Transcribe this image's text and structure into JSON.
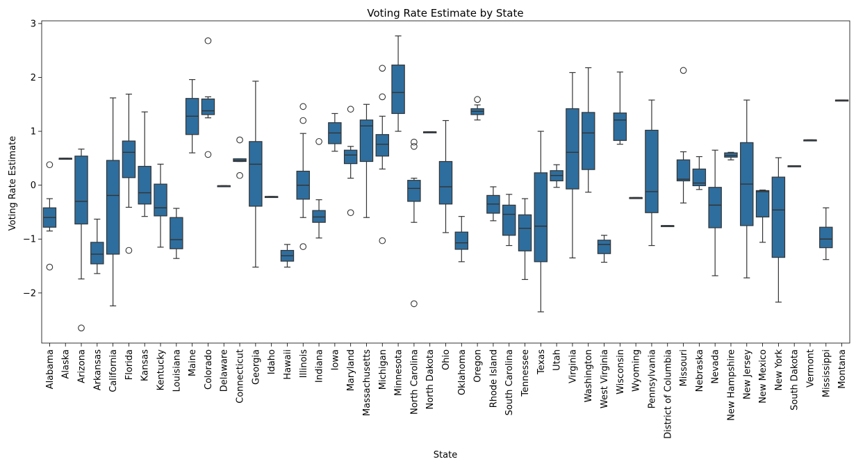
{
  "chart_data": {
    "type": "box",
    "title": "Voting Rate Estimate by State",
    "xlabel": "State",
    "ylabel": "Voting Rate Estimate",
    "ylim": [
      -2.93,
      3.05
    ],
    "yticks": [
      -2,
      -1,
      0,
      1,
      2,
      3
    ],
    "ytick_labels": [
      "−2",
      "−1",
      "0",
      "1",
      "2",
      "3"
    ],
    "grid": false,
    "box_color": "#2e6e9e",
    "line_color": "#333333",
    "categories": [
      "Alabama",
      "Alaska",
      "Arizona",
      "Arkansas",
      "California",
      "Florida",
      "Kansas",
      "Kentucky",
      "Louisiana",
      "Maine",
      "Colorado",
      "Delaware",
      "Connecticut",
      "Georgia",
      "Idaho",
      "Hawaii",
      "Illinois",
      "Indiana",
      "Iowa",
      "Maryland",
      "Massachusetts",
      "Michigan",
      "Minnesota",
      "North Carolina",
      "North Dakota",
      "Ohio",
      "Oklahoma",
      "Oregon",
      "Rhode Island",
      "South Carolina",
      "Tennessee",
      "Texas",
      "Utah",
      "Virginia",
      "Washington",
      "West Virginia",
      "Wisconsin",
      "Wyoming",
      "Pennsylvania",
      "District of Columbia",
      "Missouri",
      "Nebraska",
      "Nevada",
      "New Hampshire",
      "New Jersey",
      "New Mexico",
      "New York",
      "South Dakota",
      "Vermont",
      "Mississippi",
      "Montana"
    ],
    "boxes": [
      {
        "q1": -0.78,
        "median": -0.6,
        "q3": -0.42,
        "whisker_low": -0.85,
        "whisker_high": -0.25,
        "outliers": [
          0.38,
          -1.52
        ]
      },
      {
        "q1": 0.5,
        "median": 0.5,
        "q3": 0.5,
        "whisker_low": 0.5,
        "whisker_high": 0.5,
        "outliers": []
      },
      {
        "q1": -0.72,
        "median": -0.3,
        "q3": 0.54,
        "whisker_low": -1.74,
        "whisker_high": 0.67,
        "outliers": [
          -2.65
        ]
      },
      {
        "q1": -1.46,
        "median": -1.28,
        "q3": -1.06,
        "whisker_low": -1.64,
        "whisker_high": -0.63,
        "outliers": []
      },
      {
        "q1": -1.28,
        "median": -0.19,
        "q3": 0.46,
        "whisker_low": -2.24,
        "whisker_high": 1.62,
        "outliers": []
      },
      {
        "q1": 0.14,
        "median": 0.61,
        "q3": 0.82,
        "whisker_low": -0.41,
        "whisker_high": 1.69,
        "outliers": [
          -1.21
        ]
      },
      {
        "q1": -0.35,
        "median": -0.14,
        "q3": 0.35,
        "whisker_low": -0.58,
        "whisker_high": 1.36,
        "outliers": []
      },
      {
        "q1": -0.57,
        "median": -0.42,
        "q3": 0.02,
        "whisker_low": -1.15,
        "whisker_high": 0.39,
        "outliers": []
      },
      {
        "q1": -1.18,
        "median": -1.01,
        "q3": -0.6,
        "whisker_low": -1.36,
        "whisker_high": -0.43,
        "outliers": []
      },
      {
        "q1": 0.94,
        "median": 1.28,
        "q3": 1.61,
        "whisker_low": 0.6,
        "whisker_high": 1.96,
        "outliers": []
      },
      {
        "q1": 1.31,
        "median": 1.38,
        "q3": 1.6,
        "whisker_low": 1.25,
        "whisker_high": 1.64,
        "outliers": [
          2.68,
          0.57
        ]
      },
      {
        "q1": -0.01,
        "median": -0.01,
        "q3": -0.01,
        "whisker_low": -0.01,
        "whisker_high": -0.01,
        "outliers": []
      },
      {
        "q1": 0.44,
        "median": 0.46,
        "q3": 0.49,
        "whisker_low": 0.44,
        "whisker_high": 0.49,
        "outliers": [
          0.84,
          0.18
        ]
      },
      {
        "q1": -0.39,
        "median": 0.39,
        "q3": 0.81,
        "whisker_low": -1.52,
        "whisker_high": 1.93,
        "outliers": []
      },
      {
        "q1": -0.21,
        "median": -0.21,
        "q3": -0.21,
        "whisker_low": -0.21,
        "whisker_high": -0.21,
        "outliers": []
      },
      {
        "q1": -1.41,
        "median": -1.31,
        "q3": -1.21,
        "whisker_low": -1.52,
        "whisker_high": -1.1,
        "outliers": []
      },
      {
        "q1": -0.26,
        "median": 0.0,
        "q3": 0.26,
        "whisker_low": -0.6,
        "whisker_high": 0.96,
        "outliers": [
          1.46,
          1.2,
          -1.14
        ]
      },
      {
        "q1": -0.69,
        "median": -0.59,
        "q3": -0.47,
        "whisker_low": -0.98,
        "whisker_high": -0.27,
        "outliers": [
          0.81
        ]
      },
      {
        "q1": 0.77,
        "median": 0.97,
        "q3": 1.16,
        "whisker_low": 0.63,
        "whisker_high": 1.33,
        "outliers": []
      },
      {
        "q1": 0.4,
        "median": 0.56,
        "q3": 0.65,
        "whisker_low": 0.13,
        "whisker_high": 0.72,
        "outliers": [
          1.41,
          -0.51
        ]
      },
      {
        "q1": 0.44,
        "median": 1.1,
        "q3": 1.21,
        "whisker_low": -0.6,
        "whisker_high": 1.5,
        "outliers": []
      },
      {
        "q1": 0.54,
        "median": 0.76,
        "q3": 0.94,
        "whisker_low": 0.3,
        "whisker_high": 1.28,
        "outliers": [
          2.17,
          1.64,
          -1.03
        ]
      },
      {
        "q1": 1.33,
        "median": 1.72,
        "q3": 2.23,
        "whisker_low": 1.0,
        "whisker_high": 2.77,
        "outliers": []
      },
      {
        "q1": -0.3,
        "median": -0.06,
        "q3": 0.09,
        "whisker_low": -0.69,
        "whisker_high": 0.13,
        "outliers": [
          0.8,
          0.72,
          -2.2
        ]
      },
      {
        "q1": 0.99,
        "median": 0.99,
        "q3": 0.99,
        "whisker_low": 0.99,
        "whisker_high": 0.99,
        "outliers": []
      },
      {
        "q1": -0.35,
        "median": -0.03,
        "q3": 0.44,
        "whisker_low": -0.88,
        "whisker_high": 1.2,
        "outliers": []
      },
      {
        "q1": -1.19,
        "median": -1.07,
        "q3": -0.87,
        "whisker_low": -1.42,
        "whisker_high": -0.58,
        "outliers": []
      },
      {
        "q1": 1.31,
        "median": 1.37,
        "q3": 1.42,
        "whisker_low": 1.21,
        "whisker_high": 1.49,
        "outliers": [
          1.59
        ]
      },
      {
        "q1": -0.52,
        "median": -0.35,
        "q3": -0.19,
        "whisker_low": -0.66,
        "whisker_high": -0.03,
        "outliers": []
      },
      {
        "q1": -0.93,
        "median": -0.54,
        "q3": -0.37,
        "whisker_low": -1.12,
        "whisker_high": -0.17,
        "outliers": []
      },
      {
        "q1": -1.22,
        "median": -0.8,
        "q3": -0.55,
        "whisker_low": -1.75,
        "whisker_high": -0.25,
        "outliers": []
      },
      {
        "q1": -1.42,
        "median": -0.76,
        "q3": 0.23,
        "whisker_low": -2.35,
        "whisker_high": 1.0,
        "outliers": []
      },
      {
        "q1": 0.08,
        "median": 0.18,
        "q3": 0.27,
        "whisker_low": -0.04,
        "whisker_high": 0.38,
        "outliers": []
      },
      {
        "q1": -0.07,
        "median": 0.61,
        "q3": 1.42,
        "whisker_low": -1.35,
        "whisker_high": 2.09,
        "outliers": []
      },
      {
        "q1": 0.29,
        "median": 0.97,
        "q3": 1.35,
        "whisker_low": -0.13,
        "whisker_high": 2.18,
        "outliers": []
      },
      {
        "q1": -1.27,
        "median": -1.1,
        "q3": -1.02,
        "whisker_low": -1.43,
        "whisker_high": -0.93,
        "outliers": []
      },
      {
        "q1": 0.83,
        "median": 1.21,
        "q3": 1.34,
        "whisker_low": 0.76,
        "whisker_high": 2.1,
        "outliers": []
      },
      {
        "q1": -0.23,
        "median": -0.23,
        "q3": -0.23,
        "whisker_low": -0.23,
        "whisker_high": -0.23,
        "outliers": []
      },
      {
        "q1": -0.51,
        "median": -0.12,
        "q3": 1.02,
        "whisker_low": -1.12,
        "whisker_high": 1.58,
        "outliers": []
      },
      {
        "q1": -0.75,
        "median": -0.75,
        "q3": -0.75,
        "whisker_low": -0.75,
        "whisker_high": -0.75,
        "outliers": []
      },
      {
        "q1": 0.08,
        "median": 0.11,
        "q3": 0.47,
        "whisker_low": -0.33,
        "whisker_high": 0.62,
        "outliers": [
          2.13
        ]
      },
      {
        "q1": -0.01,
        "median": 0.04,
        "q3": 0.3,
        "whisker_low": -0.08,
        "whisker_high": 0.53,
        "outliers": []
      },
      {
        "q1": -0.79,
        "median": -0.37,
        "q3": -0.04,
        "whisker_low": -1.68,
        "whisker_high": 0.65,
        "outliers": []
      },
      {
        "q1": 0.52,
        "median": 0.55,
        "q3": 0.6,
        "whisker_low": 0.47,
        "whisker_high": 0.61,
        "outliers": []
      },
      {
        "q1": -0.75,
        "median": 0.02,
        "q3": 0.79,
        "whisker_low": -1.72,
        "whisker_high": 1.58,
        "outliers": []
      },
      {
        "q1": -0.59,
        "median": -0.12,
        "q3": -0.1,
        "whisker_low": -1.06,
        "whisker_high": -0.09,
        "outliers": []
      },
      {
        "q1": -1.34,
        "median": -0.46,
        "q3": 0.15,
        "whisker_low": -2.17,
        "whisker_high": 0.51,
        "outliers": []
      },
      {
        "q1": 0.36,
        "median": 0.36,
        "q3": 0.36,
        "whisker_low": 0.36,
        "whisker_high": 0.36,
        "outliers": []
      },
      {
        "q1": 0.84,
        "median": 0.84,
        "q3": 0.84,
        "whisker_low": 0.84,
        "whisker_high": 0.84,
        "outliers": []
      },
      {
        "q1": -1.16,
        "median": -1.0,
        "q3": -0.78,
        "whisker_low": -1.38,
        "whisker_high": -0.42,
        "outliers": []
      },
      {
        "q1": 1.58,
        "median": 1.58,
        "q3": 1.58,
        "whisker_low": 1.58,
        "whisker_high": 1.58,
        "outliers": []
      }
    ]
  }
}
